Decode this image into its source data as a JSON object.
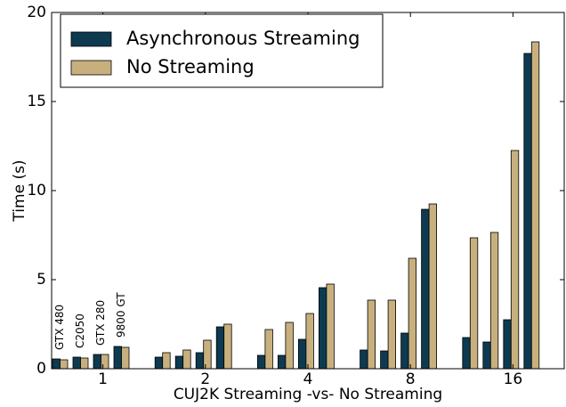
{
  "chart_data": {
    "type": "grouped-bar",
    "x_label": "CUJ2K Streaming -vs- No Streaming",
    "y_label": "Time (s)",
    "categories": [
      "1",
      "2",
      "4",
      "8",
      "16"
    ],
    "subcategories": [
      "GTX 480",
      "C2050",
      "GTX 280",
      "9800 GT"
    ],
    "series": [
      {
        "name": "Asynchronous Streaming",
        "color": "#0d3a50",
        "values": [
          [
            0.55,
            0.65,
            0.8,
            1.25
          ],
          [
            0.65,
            0.7,
            0.9,
            2.35
          ],
          [
            0.75,
            0.75,
            1.65,
            4.55
          ],
          [
            1.05,
            1.0,
            2.0,
            8.95
          ],
          [
            1.75,
            1.5,
            2.75,
            17.7
          ]
        ]
      },
      {
        "name": "No Streaming",
        "color": "#c8b07e",
        "values": [
          [
            0.5,
            0.6,
            0.8,
            1.2
          ],
          [
            0.9,
            1.05,
            1.6,
            2.5
          ],
          [
            2.2,
            2.6,
            3.1,
            4.75
          ],
          [
            3.85,
            3.85,
            6.2,
            9.25
          ],
          [
            7.35,
            7.65,
            12.25,
            18.35
          ]
        ]
      }
    ],
    "ylim": [
      0,
      20
    ],
    "yticks": [
      0,
      5,
      10,
      15,
      20
    ],
    "legend": "upper left"
  }
}
